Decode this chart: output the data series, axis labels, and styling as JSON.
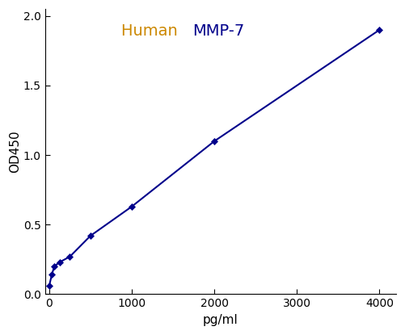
{
  "x": [
    0,
    31.25,
    62.5,
    125,
    250,
    500,
    1000,
    2000,
    4000
  ],
  "y": [
    0.06,
    0.14,
    0.2,
    0.23,
    0.27,
    0.42,
    0.63,
    1.1,
    1.9
  ],
  "line_color": "#00008B",
  "marker_color": "#00008B",
  "marker": "D",
  "marker_size": 4,
  "line_width": 1.5,
  "title_part1": "Human   ",
  "title_part2": "MMP-7",
  "title_color1": "#CC8800",
  "title_color2": "#00008B",
  "title_fontsize": 14,
  "xlabel": "pg/ml",
  "ylabel": "OD450",
  "xlim": [
    -50,
    4200
  ],
  "ylim": [
    0,
    2.05
  ],
  "xticks": [
    0,
    1000,
    2000,
    3000,
    4000
  ],
  "yticks": [
    0,
    0.5,
    1.0,
    1.5,
    2.0
  ],
  "background_color": "#ffffff",
  "axes_background": "#ffffff",
  "tick_fontsize": 10,
  "label_fontsize": 11
}
